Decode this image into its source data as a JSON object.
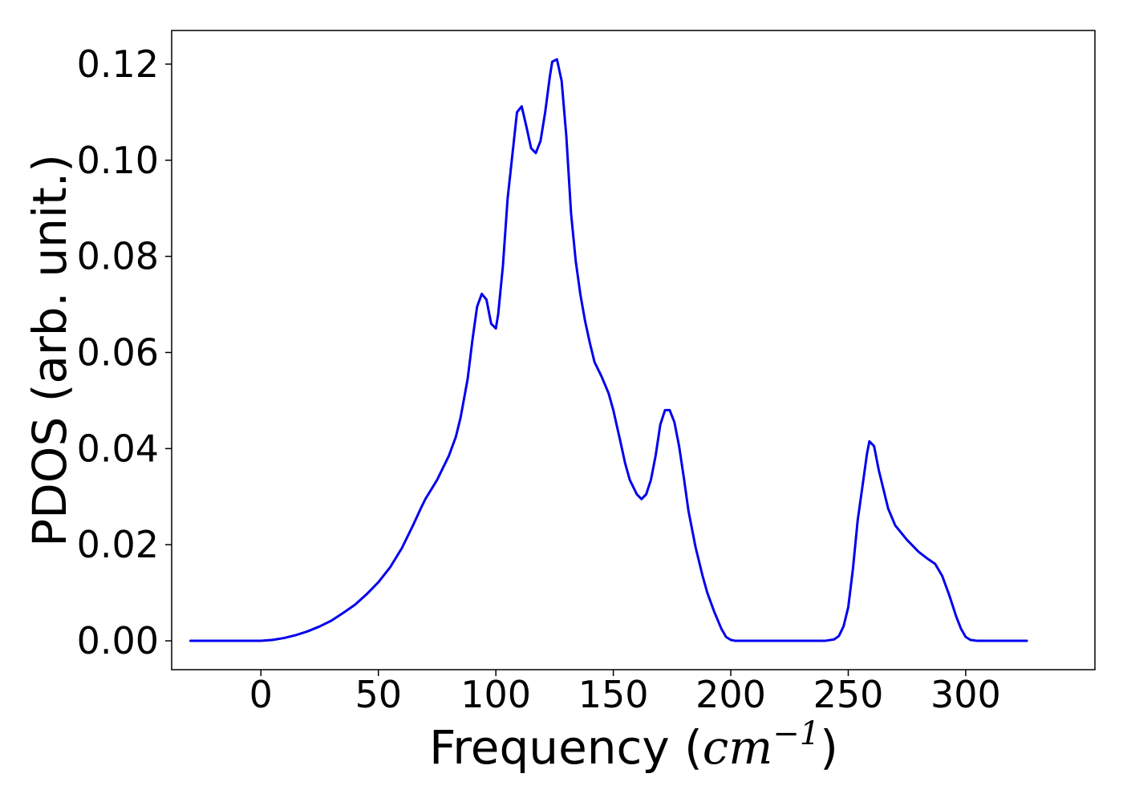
{
  "chart_data": {
    "type": "line",
    "title": "",
    "xlabel": "Frequency (cm⁻¹)",
    "xlabel_parts": {
      "prefix": "Frequency (",
      "math_base": "cm",
      "math_sup": "−1",
      "suffix": ")"
    },
    "ylabel": "PDOS (arb. unit.)",
    "xlim": [
      -38,
      355
    ],
    "ylim": [
      -0.006,
      0.127
    ],
    "xticks": [
      0,
      50,
      100,
      150,
      200,
      250,
      300
    ],
    "xtick_labels": [
      "0",
      "50",
      "100",
      "150",
      "200",
      "250",
      "300"
    ],
    "yticks": [
      0.0,
      0.02,
      0.04,
      0.06,
      0.08,
      0.1,
      0.12
    ],
    "ytick_labels": [
      "0.00",
      "0.02",
      "0.04",
      "0.06",
      "0.08",
      "0.10",
      "0.12"
    ],
    "grid": false,
    "legend": "none",
    "series": [
      {
        "color": "#0000ee",
        "x": [
          -30,
          -20,
          -10,
          0,
          5,
          10,
          15,
          20,
          25,
          30,
          35,
          40,
          45,
          50,
          55,
          60,
          65,
          68,
          70,
          75,
          80,
          83,
          85,
          88,
          90,
          92,
          94,
          96,
          98,
          100,
          101,
          103,
          105,
          107,
          109,
          111,
          113,
          115,
          117,
          119,
          121,
          123,
          124,
          126,
          128,
          130,
          132,
          134,
          136,
          138,
          140,
          142,
          145,
          148,
          150,
          153,
          155,
          157,
          160,
          162,
          164,
          166,
          168,
          170,
          172,
          174,
          176,
          178,
          180,
          182,
          185,
          188,
          190,
          193,
          196,
          198,
          200,
          202,
          205,
          210,
          220,
          230,
          240,
          244,
          246,
          248,
          250,
          252,
          254,
          256,
          258,
          259,
          261,
          263,
          265,
          267,
          270,
          275,
          280,
          284,
          287,
          290,
          293,
          296,
          298,
          300,
          302,
          305,
          310,
          320,
          326
        ],
        "y": [
          0.0,
          0.0,
          0.0,
          0.0,
          0.0002,
          0.0006,
          0.0012,
          0.002,
          0.003,
          0.0042,
          0.0058,
          0.0075,
          0.0097,
          0.0122,
          0.0153,
          0.0193,
          0.0243,
          0.0275,
          0.0295,
          0.0335,
          0.0385,
          0.0425,
          0.0465,
          0.0545,
          0.0625,
          0.0695,
          0.0722,
          0.071,
          0.066,
          0.065,
          0.068,
          0.078,
          0.092,
          0.101,
          0.11,
          0.1112,
          0.107,
          0.1025,
          0.1015,
          0.104,
          0.11,
          0.1175,
          0.1205,
          0.121,
          0.1165,
          0.105,
          0.089,
          0.079,
          0.072,
          0.0665,
          0.062,
          0.058,
          0.055,
          0.0515,
          0.048,
          0.0415,
          0.037,
          0.0335,
          0.0305,
          0.0295,
          0.0305,
          0.0335,
          0.0385,
          0.045,
          0.048,
          0.048,
          0.0455,
          0.0405,
          0.034,
          0.027,
          0.0195,
          0.0135,
          0.01,
          0.006,
          0.0025,
          0.0008,
          0.0002,
          0.0,
          0.0,
          0.0,
          0.0,
          0.0,
          0.0,
          0.0003,
          0.001,
          0.003,
          0.007,
          0.015,
          0.025,
          0.032,
          0.039,
          0.0415,
          0.0405,
          0.0355,
          0.0315,
          0.0275,
          0.024,
          0.021,
          0.0185,
          0.017,
          0.016,
          0.0135,
          0.0095,
          0.005,
          0.0025,
          0.0008,
          0.0002,
          0.0,
          0.0,
          0.0,
          0.0
        ]
      }
    ]
  }
}
